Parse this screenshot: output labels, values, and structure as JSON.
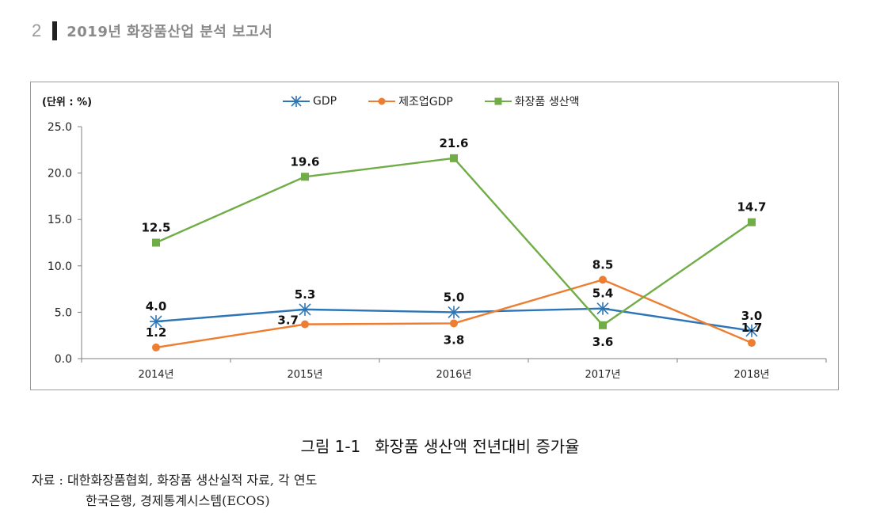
{
  "page": {
    "number": "2",
    "report_title": "2019년 화장품산업 분석 보고서"
  },
  "chart_data": {
    "type": "line",
    "unit_label": "(단위 : %)",
    "categories": [
      "2014년",
      "2015년",
      "2016년",
      "2017년",
      "2018년"
    ],
    "ylim": [
      0,
      25
    ],
    "yticks": [
      "0.0",
      "5.0",
      "10.0",
      "15.0",
      "20.0",
      "25.0"
    ],
    "ytick_values": [
      0,
      5,
      10,
      15,
      20,
      25
    ],
    "legend_position": "top-center",
    "series": [
      {
        "name": "GDP",
        "color": "#2e75b6",
        "marker": "star",
        "values": [
          4.0,
          5.3,
          5.0,
          5.4,
          3.0
        ],
        "labels": [
          "4.0",
          "5.3",
          "5.0",
          "5.4",
          "3.0"
        ],
        "label_pos": [
          "above",
          "above",
          "above",
          "above",
          "above"
        ]
      },
      {
        "name": "제조업GDP",
        "color": "#ed7d31",
        "marker": "circle",
        "values": [
          1.2,
          3.7,
          3.8,
          8.5,
          1.7
        ],
        "labels": [
          "1.2",
          "3.7",
          "3.8",
          "8.5",
          "1.7"
        ],
        "label_pos": [
          "above",
          "left",
          "below",
          "above",
          "above"
        ]
      },
      {
        "name": "화장품 생산액",
        "color": "#70ad47",
        "marker": "square",
        "values": [
          12.5,
          19.6,
          21.6,
          3.6,
          14.7
        ],
        "labels": [
          "12.5",
          "19.6",
          "21.6",
          "3.6",
          "14.7"
        ],
        "label_pos": [
          "above",
          "above",
          "above",
          "below",
          "above"
        ]
      }
    ]
  },
  "caption": {
    "figure_number": "그림 1-1",
    "title": "화장품 생산액 전년대비 증가율"
  },
  "source": {
    "line1": "자료 : 대한화장품협회, 화장품 생산실적 자료, 각 연도",
    "line2": "한국은행, 경제통계시스템(ECOS)"
  }
}
